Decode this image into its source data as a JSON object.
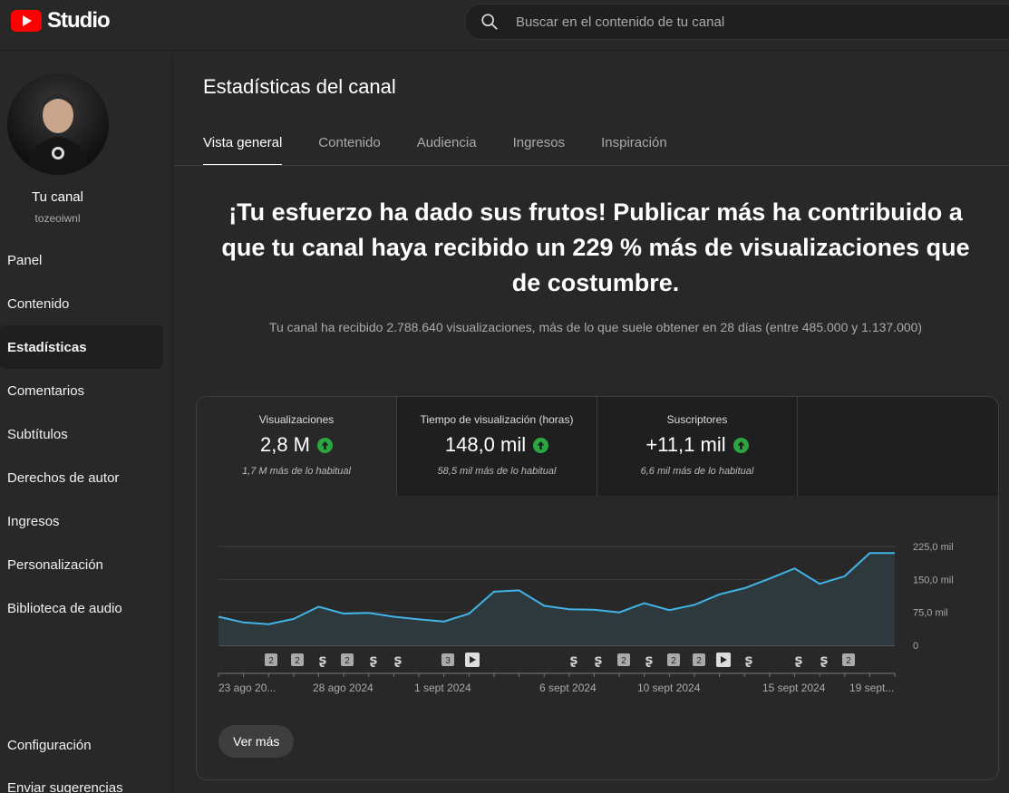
{
  "header": {
    "logo_text": "Studio",
    "search_placeholder": "Buscar en el contenido de tu canal"
  },
  "sidebar": {
    "channel_name": "Tu canal",
    "channel_handle": "tozeoiwnl",
    "items": [
      {
        "label": "Panel"
      },
      {
        "label": "Contenido"
      },
      {
        "label": "Estadísticas",
        "active": true
      },
      {
        "label": "Comentarios"
      },
      {
        "label": "Subtítulos"
      },
      {
        "label": "Derechos de autor"
      },
      {
        "label": "Ingresos"
      },
      {
        "label": "Personalización"
      },
      {
        "label": "Biblioteca de audio"
      }
    ],
    "bottom_items": [
      {
        "label": "Configuración"
      },
      {
        "label": "Enviar sugerencias"
      }
    ]
  },
  "main": {
    "title": "Estadísticas del canal",
    "tabs": [
      {
        "label": "Vista general",
        "active": true
      },
      {
        "label": "Contenido"
      },
      {
        "label": "Audiencia"
      },
      {
        "label": "Ingresos"
      },
      {
        "label": "Inspiración"
      }
    ],
    "headline": "¡Tu esfuerzo ha dado sus frutos! Publicar más ha contribuido a que tu canal haya recibido un 229 % más de visualizaciones que de costumbre.",
    "subline": "Tu canal ha recibido 2.788.640 visualizaciones, más de lo que suele obtener en 28 días (entre 485.000 y 1.137.000)",
    "metrics": [
      {
        "label": "Visualizaciones",
        "value": "2,8 M",
        "sub": "1,7 M más de lo habitual"
      },
      {
        "label": "Tiempo de visualización (horas)",
        "value": "148,0 mil",
        "sub": "58,5 mil más de lo habitual"
      },
      {
        "label": "Suscriptores",
        "value": "+11,1 mil",
        "sub": "6,6 mil más de lo habitual"
      }
    ],
    "see_more_label": "Ver más"
  },
  "colors": {
    "accent_line": "#41b4e6",
    "up_green": "#2ba640"
  },
  "chart_data": {
    "type": "area",
    "x_labels": [
      "23 ago 20...",
      "28 ago 2024",
      "1 sept 2024",
      "6 sept 2024",
      "10 sept 2024",
      "15 sept 2024",
      "19 sept..."
    ],
    "y_tick_labels": [
      "225,0 mil",
      "150,0 mil",
      "75,0 mil",
      "0"
    ],
    "ylim": [
      0,
      225000
    ],
    "series": [
      {
        "values": [
          65000,
          52000,
          48000,
          60000,
          88000,
          72000,
          74000,
          65000,
          59000,
          54000,
          72000,
          122000,
          125000,
          90000,
          82000,
          81000,
          75000,
          96000,
          80000,
          92000,
          116000,
          130000,
          152000,
          175000,
          140000,
          157000,
          210000,
          210000
        ]
      }
    ],
    "upload_markers": [
      "2",
      "2",
      "s",
      "2",
      "s",
      "s",
      "3",
      "v",
      "s",
      "s",
      "2",
      "s",
      "2",
      "2",
      "v",
      "s",
      "s",
      "s",
      "2"
    ]
  }
}
